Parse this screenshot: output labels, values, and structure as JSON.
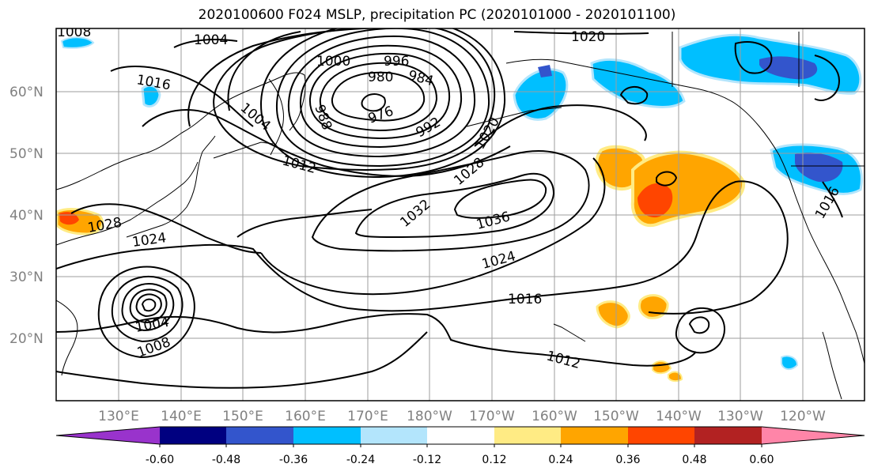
{
  "title": "2020100600 F024 MSLP, precipitation PC (2020101000 - 2020101100)",
  "lat_labels": [
    "60°N",
    "50°N",
    "40°N",
    "30°N",
    "20°N"
  ],
  "lon_labels": [
    "130°E",
    "140°E",
    "150°E",
    "160°E",
    "170°E",
    "180°W",
    "170°W",
    "160°W",
    "150°W",
    "140°W",
    "130°W",
    "120°W"
  ],
  "isobar_labels": [
    "1004",
    "1016",
    "1000",
    "996",
    "984",
    "980",
    "1004",
    "988",
    "976",
    "992",
    "1012",
    "1020",
    "1028",
    "1032",
    "1036",
    "1024",
    "1028",
    "1024",
    "1016",
    "1004",
    "1008",
    "1012",
    "1020",
    "1016",
    "1008"
  ],
  "colorbar": {
    "colors": [
      "#9933cc",
      "#000080",
      "#3355cc",
      "#00bfff",
      "#b3e5fc",
      "#ffffff",
      "#ffeb84",
      "#ffa500",
      "#ff4500",
      "#b22222",
      "#ff85a8"
    ],
    "tick_labels": [
      "-0.60",
      "-0.48",
      "-0.36",
      "-0.24",
      "-0.12",
      "0.12",
      "0.24",
      "0.36",
      "0.48",
      "0.60"
    ]
  }
}
